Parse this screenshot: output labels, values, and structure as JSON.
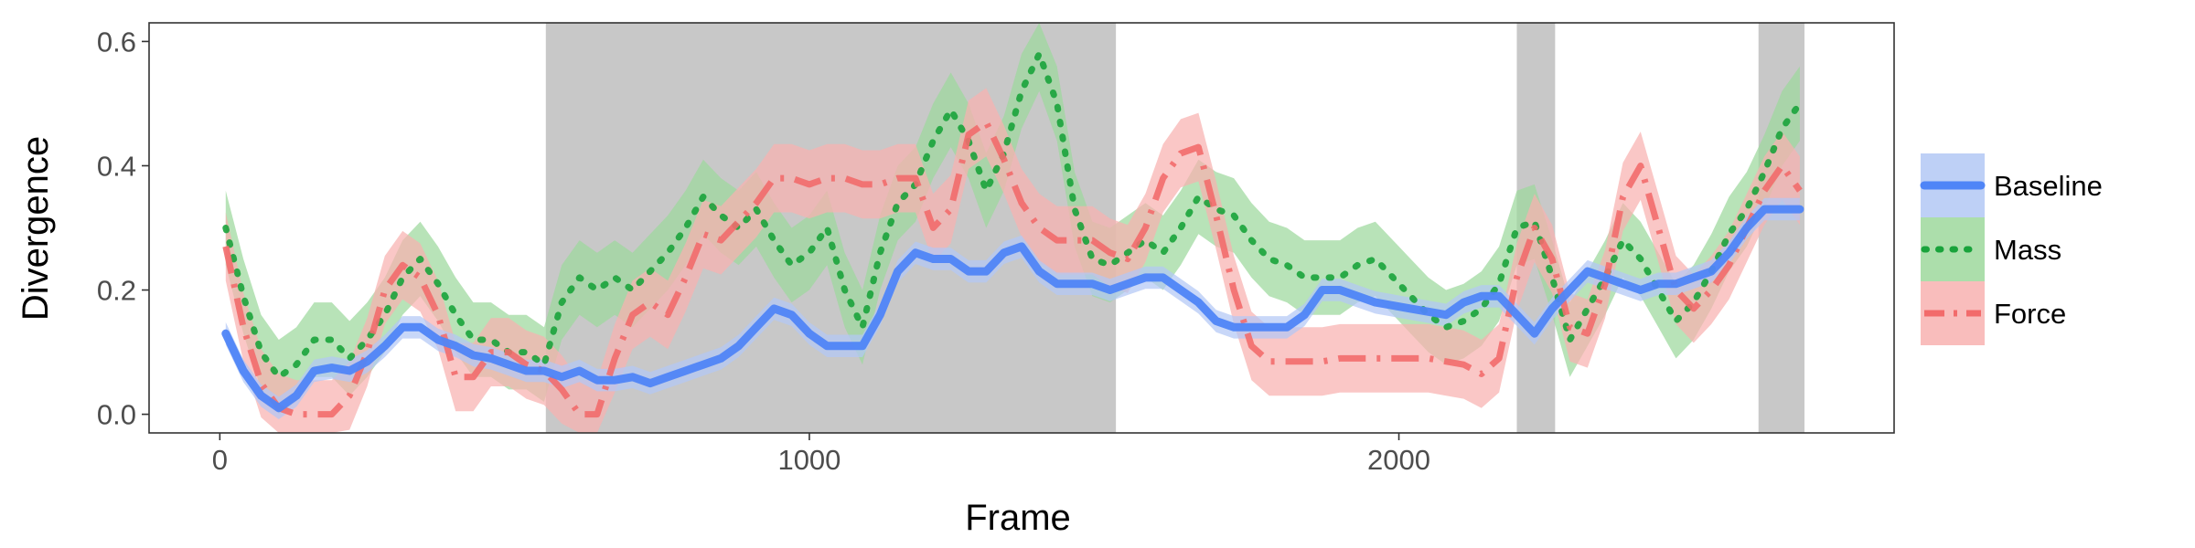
{
  "chart_data": {
    "type": "line",
    "title": "",
    "xlabel": "Frame",
    "ylabel": "Divergence",
    "xlim": [
      -120,
      2840
    ],
    "ylim": [
      -0.03,
      0.63
    ],
    "x_ticks": [
      0,
      1000,
      2000
    ],
    "x_tick_labels": [
      "0",
      "1000",
      "2000"
    ],
    "y_ticks": [
      0.0,
      0.2,
      0.4,
      0.6
    ],
    "y_tick_labels": [
      "0.0",
      "0.2",
      "0.4",
      "0.6"
    ],
    "grid": false,
    "legend_position": "right",
    "shaded_regions": [
      {
        "x_start": 553,
        "x_end": 1520
      },
      {
        "x_start": 2200,
        "x_end": 2265
      },
      {
        "x_start": 2610,
        "x_end": 2688
      }
    ],
    "series": [
      {
        "name": "Baseline",
        "color": "#4f85f7",
        "band_color": "#b3c8f5",
        "line_style": "solid",
        "x": [
          10,
          40,
          70,
          100,
          130,
          160,
          190,
          220,
          250,
          280,
          310,
          340,
          370,
          400,
          430,
          460,
          490,
          520,
          550,
          580,
          610,
          640,
          670,
          700,
          730,
          760,
          790,
          820,
          850,
          880,
          910,
          940,
          970,
          1000,
          1030,
          1060,
          1090,
          1120,
          1150,
          1180,
          1210,
          1240,
          1270,
          1300,
          1330,
          1360,
          1390,
          1420,
          1450,
          1480,
          1510,
          1540,
          1570,
          1600,
          1630,
          1660,
          1690,
          1720,
          1750,
          1780,
          1810,
          1840,
          1870,
          1900,
          1930,
          1960,
          1990,
          2020,
          2050,
          2080,
          2110,
          2140,
          2170,
          2200,
          2230,
          2260,
          2290,
          2320,
          2350,
          2380,
          2410,
          2440,
          2470,
          2500,
          2530,
          2560,
          2590,
          2620,
          2650,
          2680
        ],
        "y": [
          0.13,
          0.07,
          0.03,
          0.01,
          0.03,
          0.07,
          0.075,
          0.07,
          0.085,
          0.11,
          0.14,
          0.14,
          0.12,
          0.11,
          0.095,
          0.09,
          0.08,
          0.07,
          0.07,
          0.06,
          0.07,
          0.055,
          0.055,
          0.06,
          0.05,
          0.06,
          0.07,
          0.08,
          0.09,
          0.11,
          0.14,
          0.17,
          0.16,
          0.13,
          0.11,
          0.11,
          0.11,
          0.16,
          0.23,
          0.26,
          0.25,
          0.25,
          0.23,
          0.23,
          0.26,
          0.27,
          0.23,
          0.21,
          0.21,
          0.21,
          0.2,
          0.21,
          0.22,
          0.22,
          0.2,
          0.18,
          0.15,
          0.14,
          0.14,
          0.14,
          0.14,
          0.16,
          0.2,
          0.2,
          0.19,
          0.18,
          0.175,
          0.17,
          0.165,
          0.16,
          0.18,
          0.19,
          0.19,
          0.16,
          0.13,
          0.17,
          0.2,
          0.23,
          0.22,
          0.21,
          0.2,
          0.21,
          0.21,
          0.22,
          0.23,
          0.26,
          0.3,
          0.33,
          0.33,
          0.33
        ],
        "band": 0.018
      },
      {
        "name": "Mass",
        "color": "#19a33b",
        "band_color": "#9dd89c",
        "line_style": "dotted",
        "x": [
          10,
          40,
          70,
          100,
          130,
          160,
          190,
          220,
          250,
          280,
          310,
          340,
          370,
          400,
          430,
          460,
          490,
          520,
          550,
          580,
          610,
          640,
          670,
          700,
          730,
          760,
          790,
          820,
          850,
          880,
          910,
          940,
          970,
          1000,
          1030,
          1060,
          1090,
          1120,
          1150,
          1180,
          1210,
          1240,
          1270,
          1300,
          1330,
          1360,
          1390,
          1420,
          1450,
          1480,
          1510,
          1540,
          1570,
          1600,
          1630,
          1660,
          1690,
          1720,
          1750,
          1780,
          1810,
          1840,
          1870,
          1900,
          1930,
          1960,
          1990,
          2020,
          2050,
          2080,
          2110,
          2140,
          2170,
          2200,
          2230,
          2260,
          2290,
          2320,
          2350,
          2380,
          2410,
          2440,
          2470,
          2500,
          2530,
          2560,
          2590,
          2620,
          2650,
          2680
        ],
        "y": [
          0.3,
          0.19,
          0.1,
          0.06,
          0.08,
          0.12,
          0.12,
          0.09,
          0.12,
          0.16,
          0.22,
          0.25,
          0.21,
          0.16,
          0.12,
          0.12,
          0.1,
          0.1,
          0.08,
          0.18,
          0.22,
          0.2,
          0.22,
          0.2,
          0.23,
          0.26,
          0.3,
          0.35,
          0.32,
          0.3,
          0.33,
          0.28,
          0.24,
          0.26,
          0.3,
          0.2,
          0.14,
          0.26,
          0.34,
          0.37,
          0.44,
          0.49,
          0.44,
          0.36,
          0.42,
          0.52,
          0.58,
          0.5,
          0.33,
          0.25,
          0.24,
          0.26,
          0.28,
          0.26,
          0.3,
          0.35,
          0.33,
          0.32,
          0.28,
          0.25,
          0.24,
          0.22,
          0.22,
          0.22,
          0.24,
          0.25,
          0.22,
          0.19,
          0.16,
          0.14,
          0.15,
          0.17,
          0.21,
          0.3,
          0.31,
          0.22,
          0.12,
          0.17,
          0.22,
          0.28,
          0.25,
          0.2,
          0.15,
          0.18,
          0.23,
          0.29,
          0.33,
          0.39,
          0.46,
          0.5
        ],
        "band": 0.06
      },
      {
        "name": "Force",
        "color": "#f26b6b",
        "band_color": "#f8b1b0",
        "line_style": "dashdot",
        "x": [
          10,
          40,
          70,
          100,
          130,
          160,
          190,
          220,
          250,
          280,
          310,
          340,
          370,
          400,
          430,
          460,
          490,
          520,
          550,
          580,
          610,
          640,
          670,
          700,
          730,
          760,
          790,
          820,
          850,
          880,
          910,
          940,
          970,
          1000,
          1030,
          1060,
          1090,
          1120,
          1150,
          1180,
          1210,
          1240,
          1270,
          1300,
          1330,
          1360,
          1390,
          1420,
          1450,
          1480,
          1510,
          1540,
          1570,
          1600,
          1630,
          1660,
          1690,
          1720,
          1750,
          1780,
          1810,
          1840,
          1870,
          1900,
          1930,
          1960,
          1990,
          2020,
          2050,
          2080,
          2110,
          2140,
          2170,
          2200,
          2230,
          2260,
          2290,
          2320,
          2350,
          2380,
          2410,
          2440,
          2470,
          2500,
          2530,
          2560,
          2590,
          2620,
          2650,
          2680
        ],
        "y": [
          0.27,
          0.14,
          0.05,
          0.01,
          0.0,
          0.0,
          0.0,
          0.03,
          0.1,
          0.2,
          0.24,
          0.22,
          0.16,
          0.06,
          0.06,
          0.1,
          0.1,
          0.08,
          0.07,
          0.04,
          0.0,
          0.0,
          0.09,
          0.16,
          0.18,
          0.16,
          0.22,
          0.29,
          0.28,
          0.31,
          0.34,
          0.38,
          0.38,
          0.37,
          0.38,
          0.38,
          0.37,
          0.37,
          0.38,
          0.38,
          0.3,
          0.33,
          0.45,
          0.47,
          0.41,
          0.34,
          0.3,
          0.28,
          0.28,
          0.28,
          0.26,
          0.25,
          0.3,
          0.38,
          0.42,
          0.43,
          0.32,
          0.2,
          0.11,
          0.085,
          0.085,
          0.085,
          0.085,
          0.09,
          0.09,
          0.09,
          0.09,
          0.09,
          0.09,
          0.085,
          0.08,
          0.065,
          0.09,
          0.22,
          0.3,
          0.25,
          0.14,
          0.13,
          0.21,
          0.35,
          0.4,
          0.3,
          0.2,
          0.17,
          0.2,
          0.24,
          0.3,
          0.36,
          0.4,
          0.36
        ],
        "band": 0.055
      }
    ]
  }
}
